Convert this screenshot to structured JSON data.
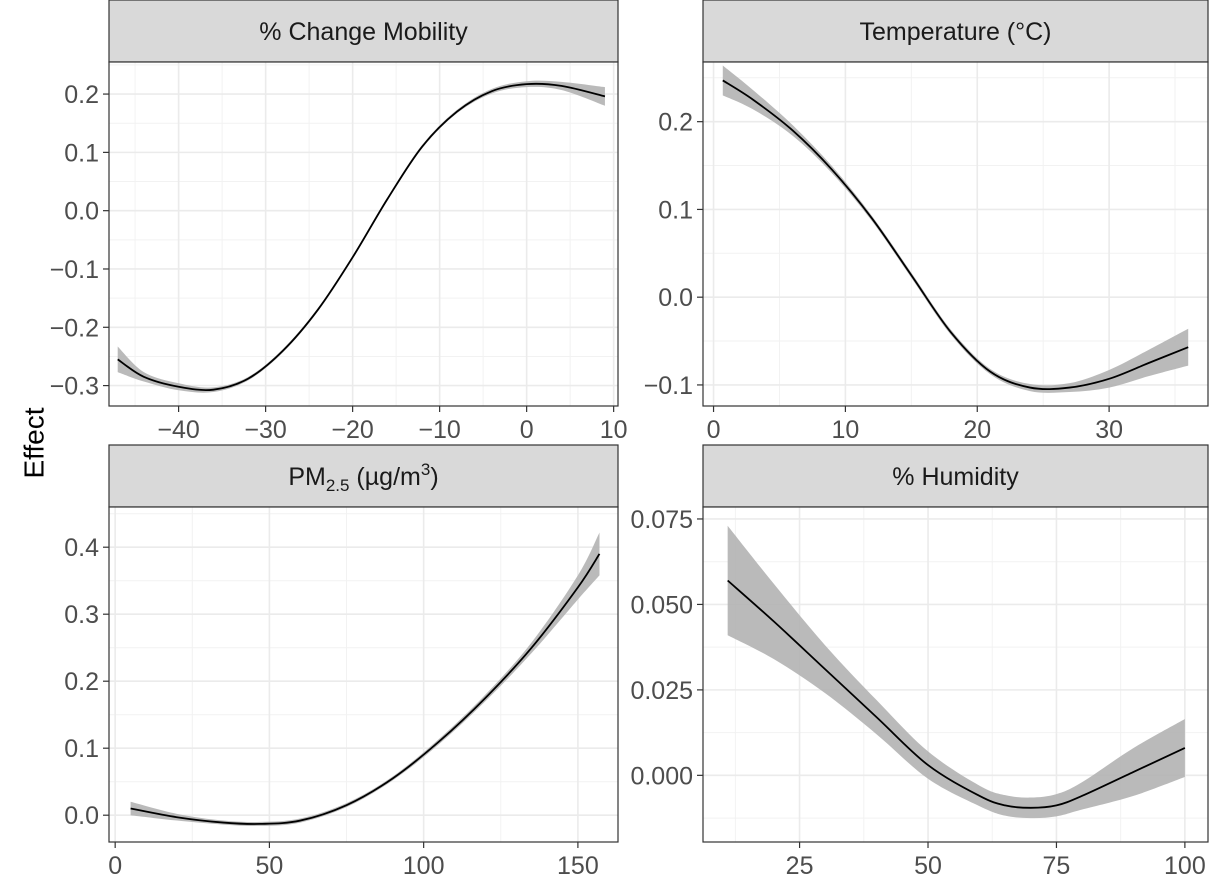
{
  "figure": {
    "ylabel": "Effect"
  },
  "chart_data": [
    {
      "type": "line",
      "title": "% Change Mobility",
      "xlabel": "",
      "ylabel": "Effect",
      "xlim": [
        -48,
        10.5
      ],
      "ylim": [
        -0.335,
        0.255
      ],
      "x_ticks": [
        -40,
        -30,
        -20,
        -10,
        0,
        10
      ],
      "x_tick_labels": [
        "−40",
        "−30",
        "−20",
        "−10",
        "0",
        "10"
      ],
      "y_ticks": [
        -0.3,
        -0.2,
        -0.1,
        0.0,
        0.1,
        0.2
      ],
      "y_tick_labels": [
        "−0.3",
        "−0.2",
        "−0.1",
        "0.0",
        "0.1",
        "0.2"
      ],
      "grid": true,
      "series": [
        {
          "x": [
            -47,
            -44,
            -40,
            -36,
            -32,
            -28,
            -24,
            -20,
            -16,
            -12,
            -8,
            -4,
            0,
            4,
            9
          ],
          "y": [
            -0.255,
            -0.285,
            -0.302,
            -0.307,
            -0.288,
            -0.24,
            -0.17,
            -0.08,
            0.02,
            0.11,
            0.17,
            0.205,
            0.217,
            0.214,
            0.196
          ],
          "lower": [
            -0.277,
            -0.293,
            -0.308,
            -0.311,
            -0.291,
            -0.243,
            -0.173,
            -0.083,
            0.017,
            0.107,
            0.167,
            0.201,
            0.212,
            0.207,
            0.18
          ],
          "upper": [
            -0.233,
            -0.277,
            -0.296,
            -0.303,
            -0.285,
            -0.237,
            -0.167,
            -0.077,
            0.023,
            0.113,
            0.173,
            0.209,
            0.222,
            0.221,
            0.212
          ]
        }
      ]
    },
    {
      "type": "line",
      "title": "Temperature (°C)",
      "xlabel": "",
      "ylabel": "Effect",
      "xlim": [
        -0.8,
        37.5
      ],
      "ylim": [
        -0.124,
        0.268
      ],
      "x_ticks": [
        0,
        10,
        20,
        30
      ],
      "x_tick_labels": [
        "0",
        "10",
        "20",
        "30"
      ],
      "y_ticks": [
        -0.1,
        0.0,
        0.1,
        0.2
      ],
      "y_tick_labels": [
        "−0.1",
        "0.0",
        "0.1",
        "0.2"
      ],
      "grid": true,
      "series": [
        {
          "x": [
            0.7,
            3,
            6,
            9,
            12,
            15,
            18,
            21,
            24,
            27,
            30,
            33,
            36
          ],
          "y": [
            0.247,
            0.225,
            0.19,
            0.145,
            0.09,
            0.025,
            -0.04,
            -0.085,
            -0.103,
            -0.103,
            -0.093,
            -0.075,
            -0.057
          ],
          "lower": [
            0.23,
            0.214,
            0.184,
            0.141,
            0.087,
            0.022,
            -0.043,
            -0.088,
            -0.107,
            -0.108,
            -0.103,
            -0.09,
            -0.078
          ],
          "upper": [
            0.264,
            0.236,
            0.196,
            0.149,
            0.093,
            0.028,
            -0.037,
            -0.082,
            -0.099,
            -0.098,
            -0.083,
            -0.06,
            -0.036
          ]
        }
      ]
    },
    {
      "type": "line",
      "title": "PM",
      "title_sub": "2.5",
      "title_rest": " (µg/m",
      "title_sup": "3",
      "title_end": ")",
      "xlabel": "",
      "ylabel": "Effect",
      "xlim": [
        -2,
        163
      ],
      "ylim": [
        -0.04,
        0.46
      ],
      "x_ticks": [
        0,
        50,
        100,
        150
      ],
      "x_tick_labels": [
        "0",
        "50",
        "100",
        "150"
      ],
      "y_ticks": [
        0.0,
        0.1,
        0.2,
        0.3,
        0.4
      ],
      "y_tick_labels": [
        "0.0",
        "0.1",
        "0.2",
        "0.3",
        "0.4"
      ],
      "grid": true,
      "series": [
        {
          "x": [
            5,
            20,
            35,
            47,
            60,
            75,
            90,
            105,
            120,
            135,
            150,
            157
          ],
          "y": [
            0.01,
            -0.003,
            -0.011,
            -0.013,
            -0.008,
            0.015,
            0.055,
            0.11,
            0.175,
            0.25,
            0.34,
            0.39
          ],
          "lower": [
            0.0,
            -0.008,
            -0.014,
            -0.016,
            -0.011,
            0.012,
            0.052,
            0.106,
            0.17,
            0.242,
            0.322,
            0.358
          ],
          "upper": [
            0.02,
            0.002,
            -0.008,
            -0.01,
            -0.005,
            0.018,
            0.058,
            0.114,
            0.18,
            0.258,
            0.358,
            0.422
          ]
        }
      ]
    },
    {
      "type": "line",
      "title": "% Humidity",
      "xlabel": "",
      "ylabel": "Effect",
      "xlim": [
        6.2,
        104.5
      ],
      "ylim": [
        -0.0195,
        0.0785
      ],
      "x_ticks": [
        25,
        50,
        75,
        100
      ],
      "x_tick_labels": [
        "25",
        "50",
        "75",
        "100"
      ],
      "y_ticks": [
        0.0,
        0.025,
        0.05,
        0.075
      ],
      "y_tick_labels": [
        "0.000",
        "0.025",
        "0.050",
        "0.075"
      ],
      "grid": true,
      "series": [
        {
          "x": [
            11,
            20,
            30,
            40,
            50,
            60,
            65,
            70,
            75,
            80,
            90,
            100
          ],
          "y": [
            0.057,
            0.045,
            0.031,
            0.017,
            0.003,
            -0.006,
            -0.0088,
            -0.0095,
            -0.0088,
            -0.006,
            0.001,
            0.008
          ],
          "lower": [
            0.041,
            0.034,
            0.024,
            0.012,
            -0.001,
            -0.009,
            -0.0118,
            -0.0125,
            -0.012,
            -0.01,
            -0.006,
            -0.0005
          ],
          "upper": [
            0.073,
            0.056,
            0.038,
            0.022,
            0.007,
            -0.003,
            -0.0058,
            -0.0065,
            -0.0055,
            -0.002,
            0.008,
            0.0165
          ]
        }
      ]
    }
  ]
}
